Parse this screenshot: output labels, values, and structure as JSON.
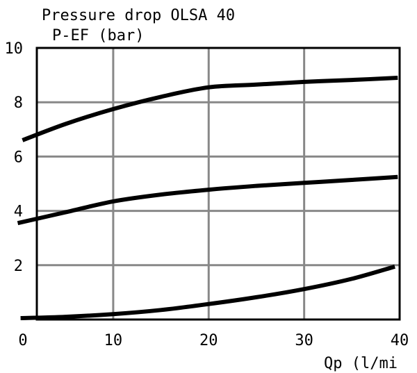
{
  "chart_data": {
    "type": "line",
    "title": "Pressure drop OLSA 40",
    "ylabel": "P-EF (bar)",
    "xlabel": "Qp (l/mi",
    "xlim": [
      0,
      40
    ],
    "ylim": [
      0,
      10
    ],
    "x_ticks": [
      "10",
      "20",
      "30",
      "40"
    ],
    "x_origin_label": "0",
    "y_ticks": [
      "2",
      "4",
      "6",
      "8",
      "10"
    ],
    "grid": true,
    "series": [
      {
        "x": [
          0.5,
          5,
          10,
          15,
          20,
          25,
          30,
          35,
          39.8
        ],
        "values": [
          6.6,
          7.2,
          7.75,
          8.2,
          8.55,
          8.65,
          8.75,
          8.82,
          8.9
        ]
      },
      {
        "x": [
          0,
          5,
          10,
          15,
          20,
          25,
          30,
          35,
          39.8
        ],
        "values": [
          3.55,
          3.95,
          4.35,
          4.6,
          4.78,
          4.92,
          5.03,
          5.14,
          5.25
        ]
      },
      {
        "x": [
          0.3,
          5,
          10,
          15,
          20,
          25,
          30,
          35,
          39.5
        ],
        "values": [
          0.05,
          0.1,
          0.2,
          0.35,
          0.57,
          0.82,
          1.12,
          1.5,
          1.95
        ]
      }
    ]
  }
}
